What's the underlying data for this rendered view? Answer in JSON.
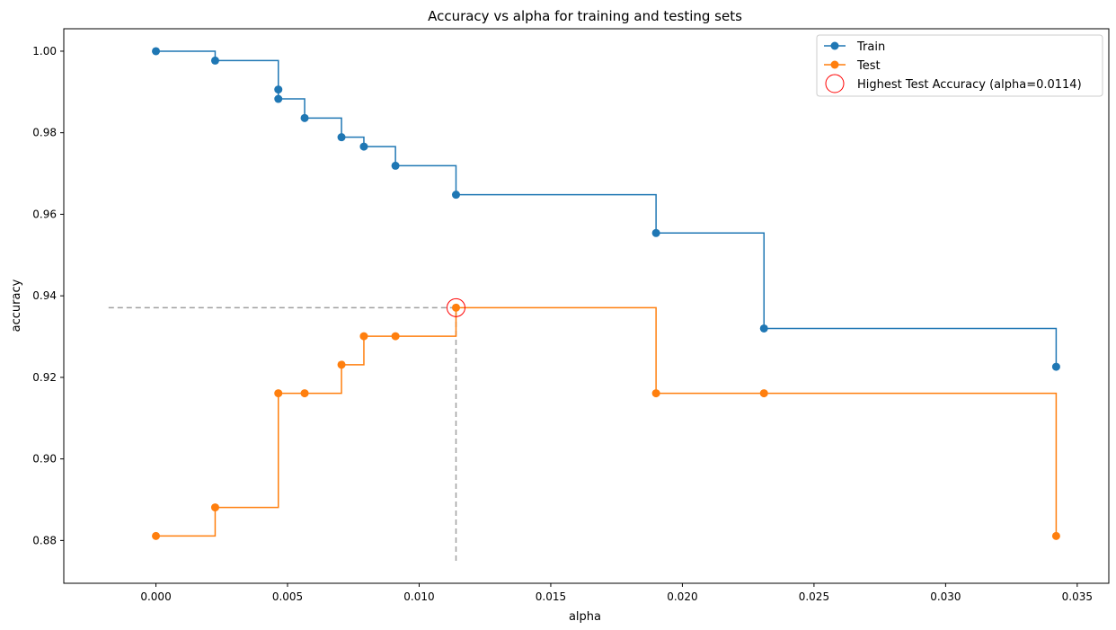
{
  "chart_data": {
    "type": "line",
    "title": "Accuracy vs alpha for training and testing sets",
    "xlabel": "alpha",
    "ylabel": "accuracy",
    "xlim": [
      -0.0035,
      0.0362
    ],
    "ylim": [
      0.8695,
      1.0055
    ],
    "x_ticks": [
      0.0,
      0.005,
      0.01,
      0.015,
      0.02,
      0.025,
      0.03,
      0.035
    ],
    "x_tick_labels": [
      "0.000",
      "0.005",
      "0.010",
      "0.015",
      "0.020",
      "0.025",
      "0.030",
      "0.035"
    ],
    "y_ticks": [
      0.88,
      0.9,
      0.92,
      0.94,
      0.96,
      0.98,
      1.0
    ],
    "y_tick_labels": [
      "0.88",
      "0.90",
      "0.92",
      "0.94",
      "0.96",
      "0.98",
      "1.00"
    ],
    "grid": false,
    "legend_position": "top-right",
    "drawstyle": "steps-post",
    "series": [
      {
        "name": "Train",
        "color": "#1f77b4",
        "x": [
          0.0,
          0.00225,
          0.00465,
          0.00465,
          0.00565,
          0.00705,
          0.0079,
          0.0091,
          0.0114,
          0.019,
          0.0231,
          0.0342
        ],
        "y": [
          1.0,
          0.9977,
          0.9906,
          0.9883,
          0.9836,
          0.9789,
          0.9766,
          0.9719,
          0.9648,
          0.9554,
          0.932,
          0.9226
        ]
      },
      {
        "name": "Test",
        "color": "#ff7f0e",
        "x": [
          0.0,
          0.00225,
          0.00465,
          0.00565,
          0.00705,
          0.0079,
          0.0091,
          0.0114,
          0.019,
          0.0231,
          0.0342
        ],
        "y": [
          0.8811,
          0.8881,
          0.9161,
          0.9161,
          0.9231,
          0.9301,
          0.9301,
          0.9371,
          0.9161,
          0.9161,
          0.8811
        ]
      }
    ],
    "highlight": {
      "label": "Highest Test Accuracy (alpha=0.0114)",
      "x": 0.0114,
      "y": 0.9371,
      "color": "#ff0000",
      "guide_color": "#a0a0a0",
      "guide_h_from_x": -0.0018,
      "guide_v_to_y": 0.875
    }
  }
}
